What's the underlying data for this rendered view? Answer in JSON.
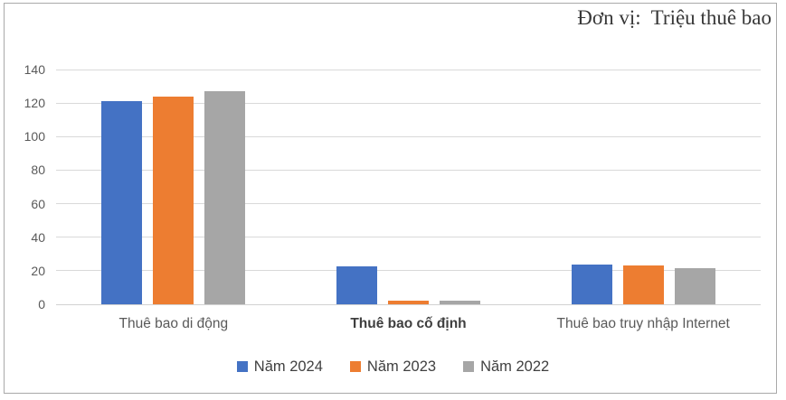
{
  "header": {
    "unit_label": "Đơn vị:  Triệu thuê bao"
  },
  "chart_data": {
    "type": "bar",
    "title": "Đơn vị:  Triệu thuê bao",
    "categories": [
      "Thuê bao di động",
      "Thuê bao cố định",
      "Thuê bao truy nhập Internet"
    ],
    "bold_category_index": 1,
    "series": [
      {
        "name": "Năm 2024",
        "color": "#4472C4",
        "values": [
          121,
          22.5,
          23.8
        ]
      },
      {
        "name": "Năm 2023",
        "color": "#ED7D31",
        "values": [
          124,
          2.4,
          23.0
        ]
      },
      {
        "name": "Năm 2022",
        "color": "#A6A6A6",
        "values": [
          127.3,
          2.1,
          21.3
        ]
      }
    ],
    "ylim": [
      0,
      140
    ],
    "yticks": [
      0,
      20,
      40,
      60,
      80,
      100,
      120,
      140
    ],
    "grid": true,
    "legend_position": "bottom",
    "colors": {
      "gridline": "#d9d9d9",
      "tick_text": "#595959",
      "legend_text": "#404040",
      "frame_border": "#a9a9a9"
    }
  }
}
